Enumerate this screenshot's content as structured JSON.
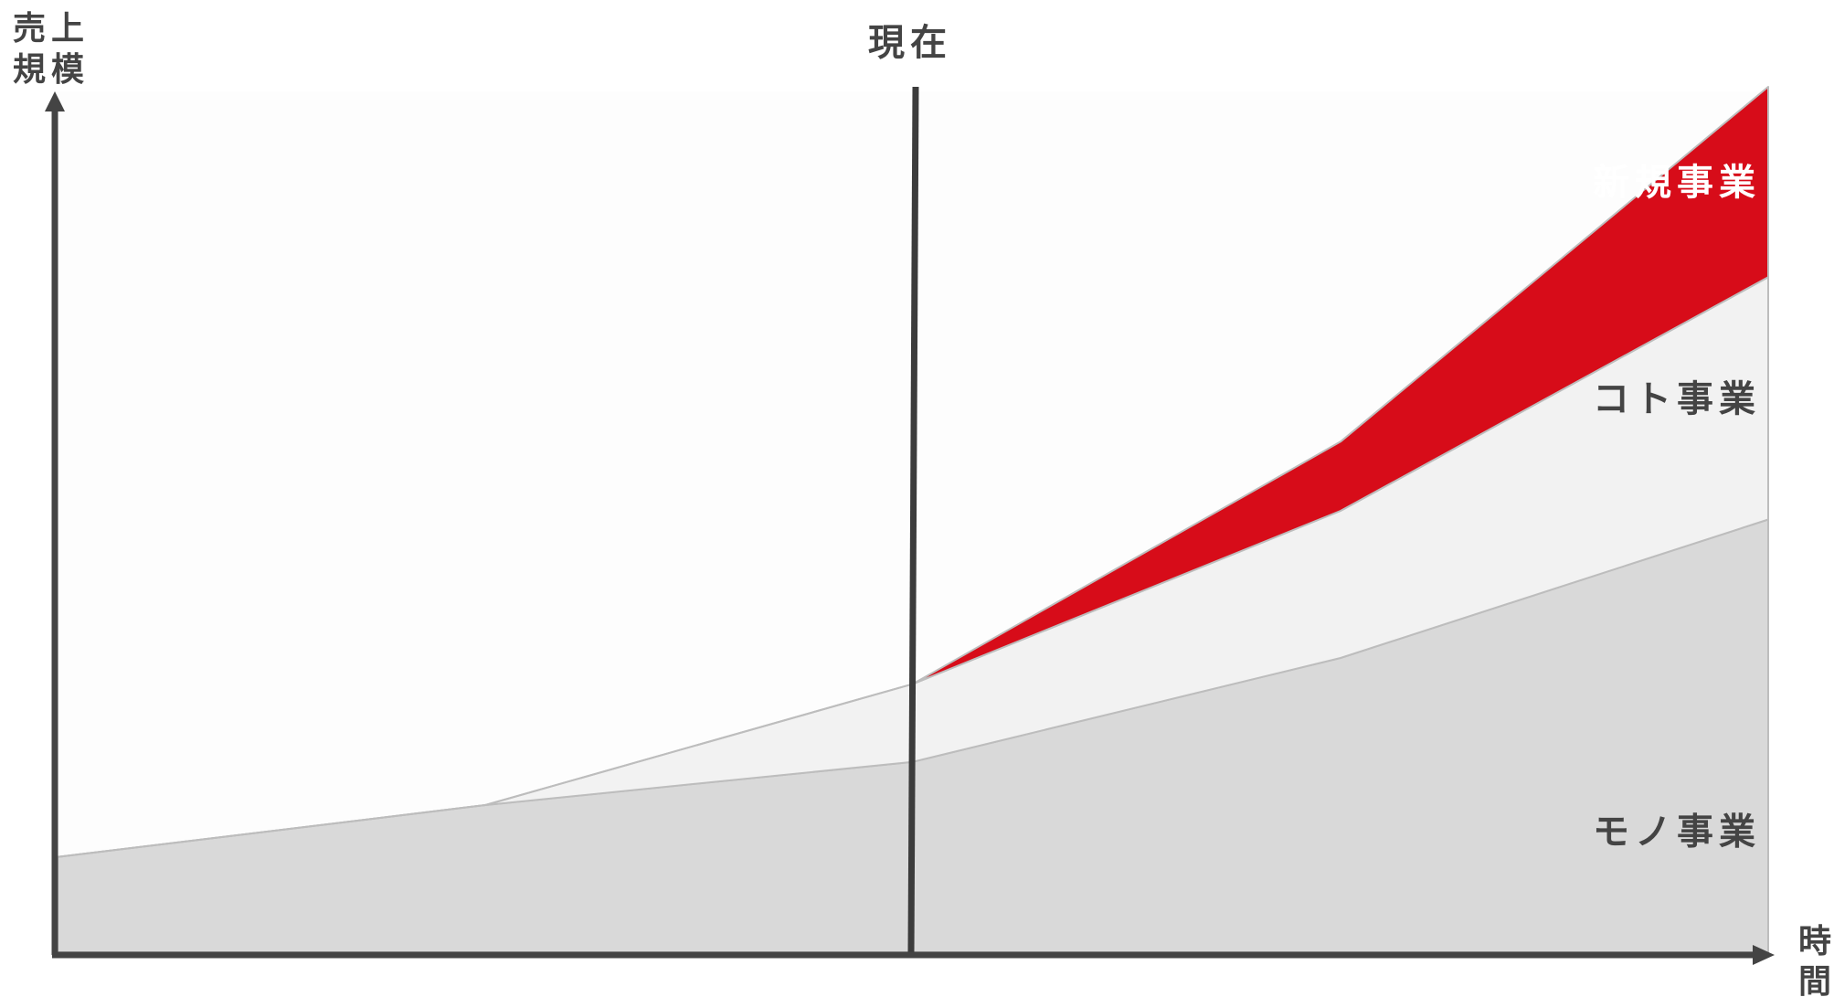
{
  "chart_data": {
    "type": "area",
    "stacked": true,
    "x": [
      0,
      1,
      2,
      3,
      4
    ],
    "xlim": [
      0,
      4
    ],
    "ylim": [
      0,
      100
    ],
    "grid": false,
    "ylabel": [
      "売上",
      "規模"
    ],
    "xlabel": [
      "時",
      "間"
    ],
    "marker": {
      "x": 2,
      "label": "現在"
    },
    "series": [
      {
        "name": "モノ事業",
        "values": [
          11,
          17,
          22,
          34,
          50
        ],
        "color": "#d9d9d9"
      },
      {
        "name": "コト事業",
        "values": [
          0,
          0,
          9,
          17,
          28
        ],
        "color": "#f2f2f2"
      },
      {
        "name": "新規事業",
        "values": [
          0,
          0,
          0,
          8,
          22
        ],
        "color": "#d70c19"
      }
    ],
    "axis_color": "#444444",
    "label_colors": {
      "dark": "#444444",
      "light": "#ffffff"
    }
  }
}
